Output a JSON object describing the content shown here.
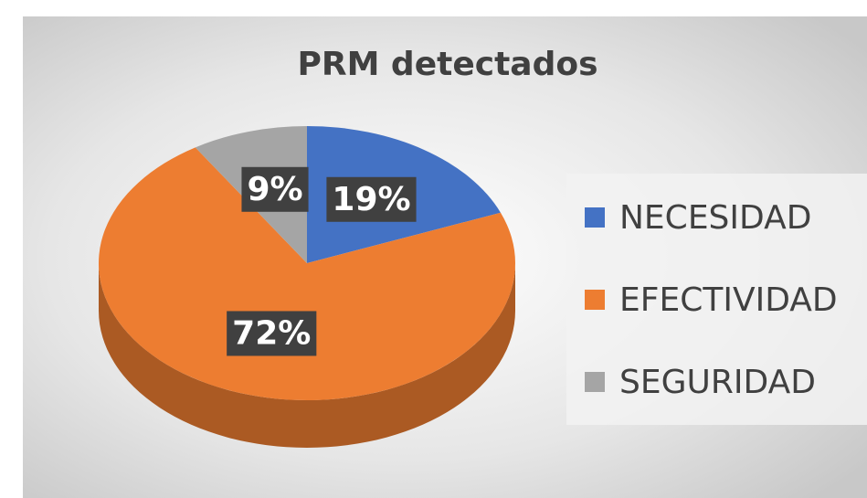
{
  "chart_data": {
    "type": "pie",
    "title": "PRM detectados",
    "categories": [
      "NECESIDAD",
      "EFECTIVIDAD",
      "SEGURIDAD"
    ],
    "values": [
      19,
      72,
      9
    ],
    "value_labels": [
      "19%",
      "72%",
      "9%"
    ],
    "colors": [
      "#4472c4",
      "#ed7d31",
      "#a5a5a5"
    ],
    "legend": "right"
  }
}
